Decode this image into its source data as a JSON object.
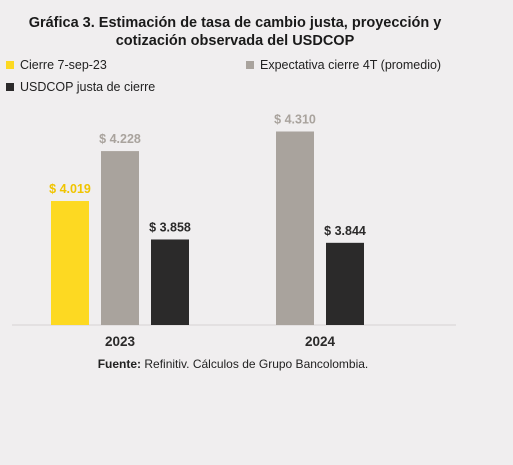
{
  "chart_data": {
    "type": "bar",
    "title_line1": "Gráfica 3. Estimación de tasa de cambio justa, proyección y",
    "title_line2": "cotización observada del USDCOP",
    "categories": [
      "2023",
      "2024"
    ],
    "series": [
      {
        "name": "Cierre 7-sep-23",
        "color": "#fdd922",
        "values": [
          4019,
          null
        ],
        "labels": [
          "$ 4.019",
          ""
        ]
      },
      {
        "name": "Expectativa cierre 4T (promedio)",
        "color": "#a9a39d",
        "values": [
          4228,
          4310
        ],
        "labels": [
          "$ 4.228",
          "$ 4.310"
        ]
      },
      {
        "name": "USDCOP justa de cierre",
        "color": "#2b2a2a",
        "values": [
          3858,
          3844
        ],
        "labels": [
          "$ 3.858",
          "$ 3.844"
        ]
      }
    ],
    "ylim": [
      3500,
      4400
    ],
    "grid": false,
    "legend_position": "top"
  },
  "source": {
    "label": "Fuente:",
    "text": " Refinitiv. Cálculos de Grupo Bancolombia."
  }
}
